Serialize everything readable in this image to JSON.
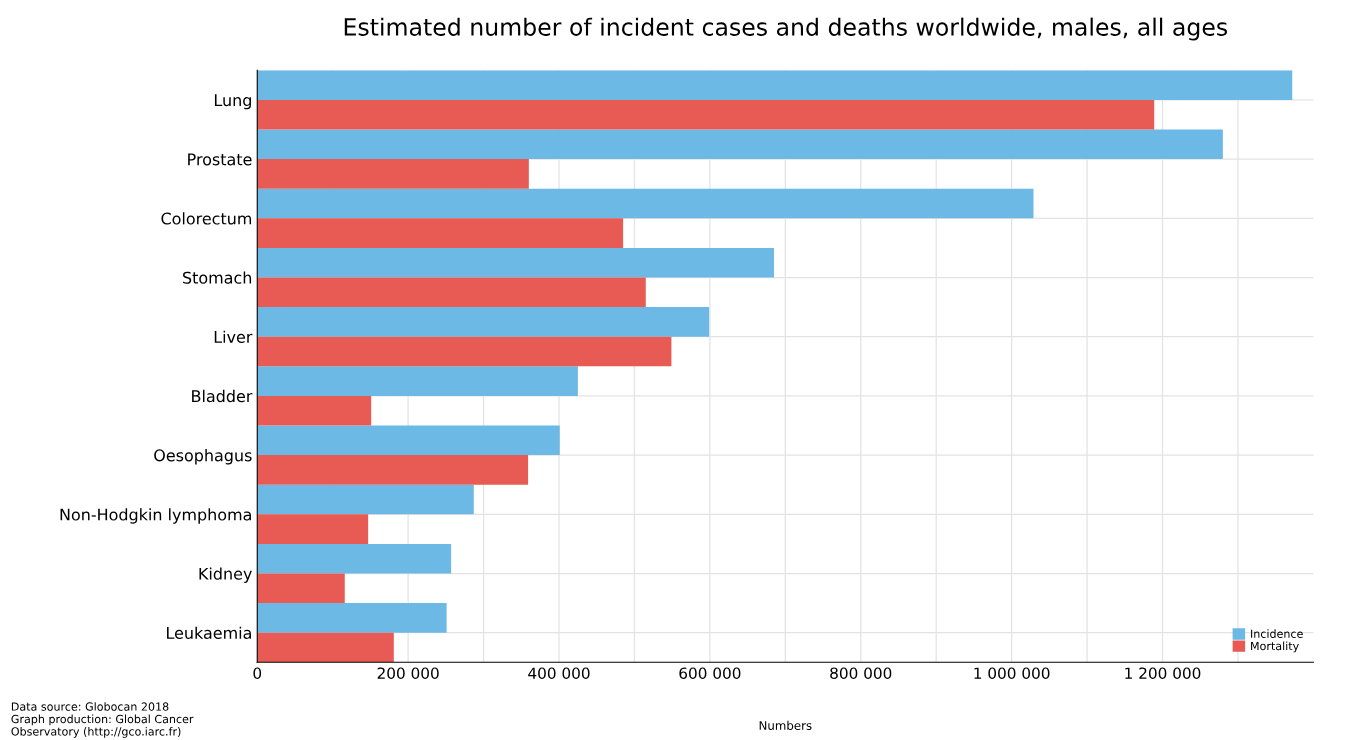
{
  "chart_data": {
    "type": "bar",
    "orientation": "horizontal",
    "title": "Estimated number of incident cases and deaths worldwide, males, all ages",
    "xlabel": "Numbers",
    "categories": [
      "Lung",
      "Prostate",
      "Colorectum",
      "Stomach",
      "Liver",
      "Bladder",
      "Oesophagus",
      "Non-Hodgkin lymphoma",
      "Kidney",
      "Leukaemia"
    ],
    "series": [
      {
        "name": "Incidence",
        "color": "#6cb9e5",
        "values": [
          1372000,
          1280000,
          1029000,
          685000,
          599000,
          425000,
          401000,
          287000,
          257000,
          251000
        ]
      },
      {
        "name": "Mortality",
        "color": "#e85b55",
        "values": [
          1189000,
          360000,
          485000,
          515000,
          549000,
          151000,
          359000,
          147000,
          116000,
          181000
        ]
      }
    ],
    "xlim": [
      0,
      1400000
    ],
    "xticks": [
      {
        "value": 0,
        "label": "0"
      },
      {
        "value": 100000,
        "label": null
      },
      {
        "value": 200000,
        "label": "200 000"
      },
      {
        "value": 300000,
        "label": null
      },
      {
        "value": 400000,
        "label": "400 000"
      },
      {
        "value": 500000,
        "label": null
      },
      {
        "value": 600000,
        "label": "600 000"
      },
      {
        "value": 700000,
        "label": null
      },
      {
        "value": 800000,
        "label": "800 000"
      },
      {
        "value": 900000,
        "label": null
      },
      {
        "value": 1000000,
        "label": "1 000 000"
      },
      {
        "value": 1100000,
        "label": null
      },
      {
        "value": 1200000,
        "label": "1 200 000"
      },
      {
        "value": 1300000,
        "label": null
      }
    ],
    "grid": true,
    "legend": "bottom right",
    "annotations": [
      "Data source: Globocan 2018\nGraph production: Global Cancer\nObservatory (http://gco.iarc.fr)"
    ]
  }
}
